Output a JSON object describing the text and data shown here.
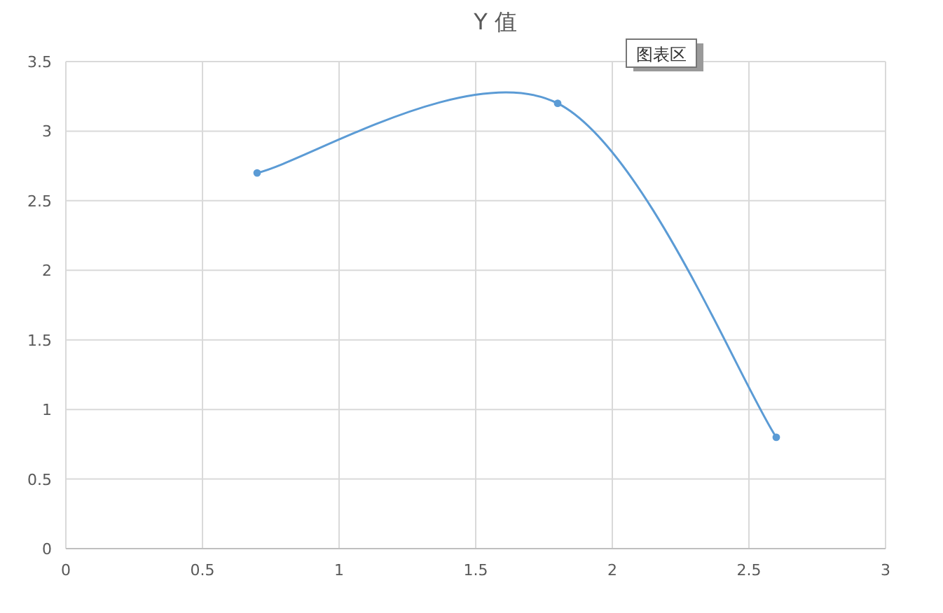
{
  "chart_data": {
    "type": "line",
    "title": "Y 值",
    "x": [
      0.7,
      1.8,
      2.6
    ],
    "series": [
      {
        "color": "#5b9bd5",
        "values": [
          2.7,
          3.2,
          0.8
        ]
      }
    ],
    "xlim": [
      0,
      3
    ],
    "xticks": [
      0,
      0.5,
      1,
      1.5,
      2,
      2.5,
      3
    ],
    "ylim": [
      0,
      3.5
    ],
    "yticks": [
      0,
      0.5,
      1,
      1.5,
      2,
      2.5,
      3,
      3.5
    ],
    "grid": true,
    "marker": "circle",
    "line_style": "solid",
    "annotations": [
      "图表区"
    ]
  }
}
